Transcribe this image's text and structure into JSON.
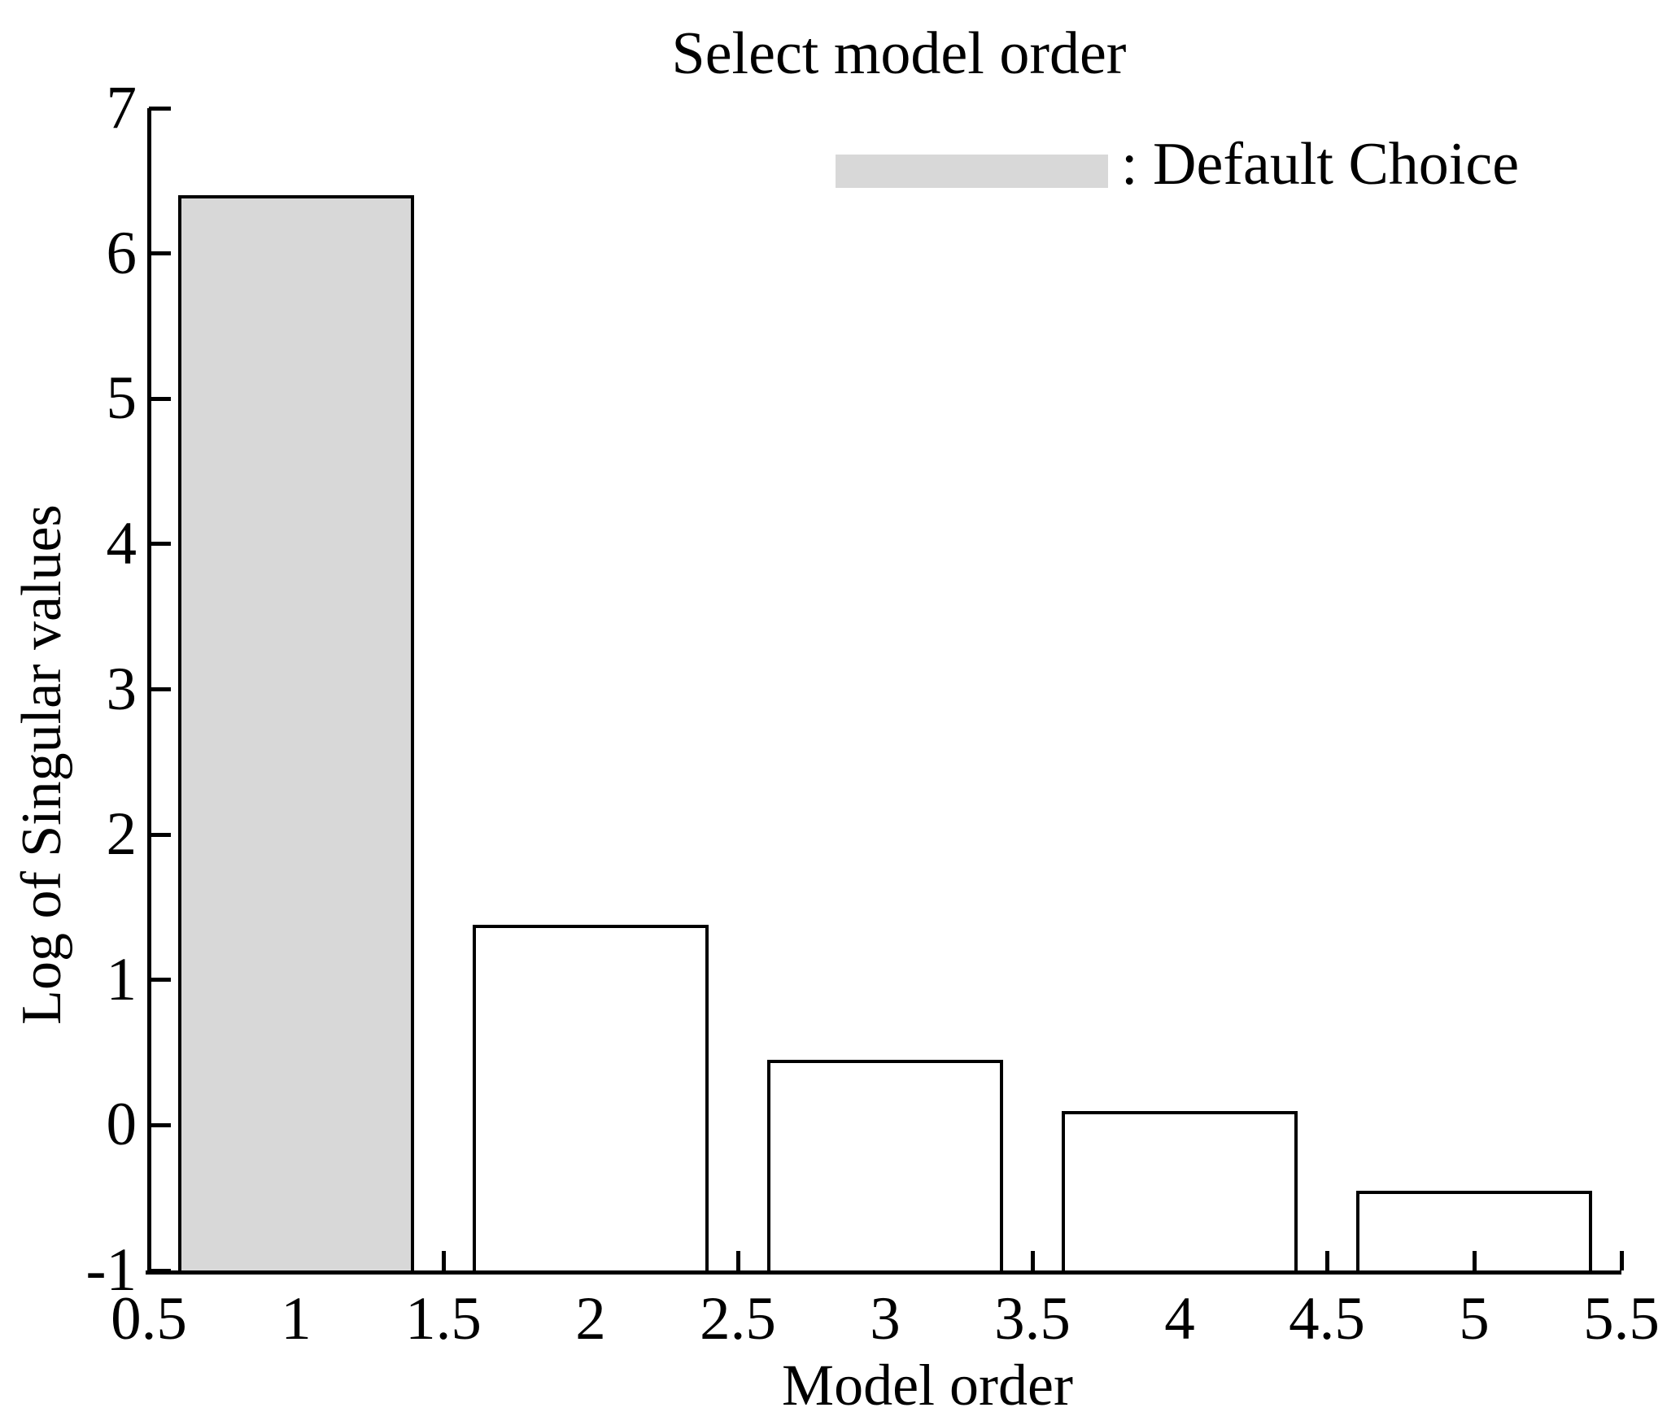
{
  "chart_data": {
    "type": "bar",
    "title": "Select model order",
    "xlabel": "Model order",
    "ylabel": "Log of Singular values",
    "categories": [
      1,
      2,
      3,
      4,
      5
    ],
    "values": [
      6.4,
      1.38,
      0.45,
      0.1,
      -0.45
    ],
    "bar_width": 0.8,
    "xlim": [
      0.5,
      5.5
    ],
    "ylim": [
      -1,
      7
    ],
    "x_tick_values": [
      0.5,
      1,
      1.5,
      2,
      2.5,
      3,
      3.5,
      4,
      4.5,
      5,
      5.5
    ],
    "x_tick_labels": [
      "0.5",
      "1",
      "1.5",
      "2",
      "2.5",
      "3",
      "3.5",
      "4",
      "4.5",
      "5",
      "5.5"
    ],
    "x_tick_marks_visible": [
      0.5,
      1.5,
      2.5,
      3.5,
      4.5,
      5,
      5.5
    ],
    "y_tick_values": [
      -1,
      0,
      1,
      2,
      3,
      4,
      5,
      6,
      7
    ],
    "y_tick_labels": [
      "-1",
      "0",
      "1",
      "2",
      "3",
      "4",
      "5",
      "6",
      "7"
    ],
    "grid": false,
    "legend": {
      "label": ": Default Choice",
      "swatch_color": "#d8d8d8",
      "position": "upper-right"
    },
    "highlighted_bar_index": 0,
    "colors": {
      "highlight_fill": "#d8d8d8",
      "bar_fill": "#ffffff",
      "edge": "#000000",
      "background": "#ffffff",
      "text": "#000000"
    }
  }
}
